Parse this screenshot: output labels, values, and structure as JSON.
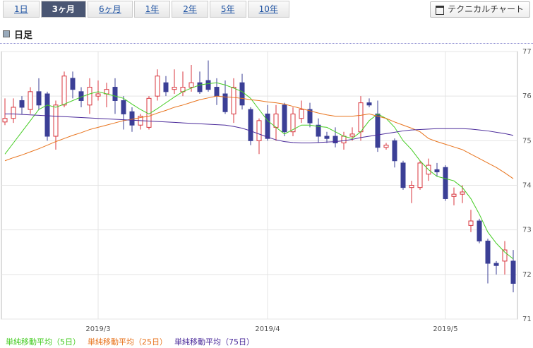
{
  "tabs": {
    "items": [
      "1日",
      "3ヶ月",
      "6ヶ月",
      "1年",
      "2年",
      "5年",
      "10年"
    ],
    "selected": 1
  },
  "button": "テクニカルチャート",
  "header": "日足",
  "chart_data": {
    "type": "candlestick",
    "categories": [
      null,
      null,
      null,
      null,
      null,
      null,
      null,
      null,
      null,
      null,
      null,
      "2019/3",
      null,
      null,
      null,
      null,
      null,
      null,
      null,
      null,
      null,
      null,
      null,
      null,
      null,
      null,
      null,
      null,
      null,
      null,
      null,
      "2019/4",
      null,
      null,
      null,
      null,
      null,
      null,
      null,
      null,
      null,
      null,
      null,
      null,
      null,
      null,
      null,
      null,
      null,
      null,
      null,
      null,
      "2019/5",
      null,
      null,
      null,
      null,
      null,
      null,
      null,
      null
    ],
    "ohlc": {
      "open": [
        75.42,
        75.5,
        75.9,
        75.7,
        76.1,
        76.05,
        75.1,
        75.8,
        76.4,
        76.1,
        75.8,
        76.0,
        76.05,
        76.2,
        75.9,
        75.65,
        75.35,
        75.3,
        76.0,
        76.3,
        76.15,
        76.1,
        76.2,
        76.3,
        76.35,
        76.2,
        76.05,
        75.6,
        76.3,
        75.7,
        75.0,
        75.6,
        75.3,
        75.8,
        75.2,
        75.5,
        75.7,
        75.35,
        75.1,
        75.1,
        74.95,
        75.1,
        75.2,
        75.85,
        75.6,
        74.85,
        75.0,
        74.5,
        73.95,
        73.95,
        74.25,
        74.35,
        74.4,
        73.75,
        73.8,
        73.1,
        73.2,
        72.75,
        72.25,
        72.3,
        72.3
      ],
      "high": [
        75.95,
        75.95,
        76.0,
        76.2,
        76.4,
        76.1,
        75.9,
        76.55,
        76.55,
        76.2,
        76.4,
        76.35,
        76.3,
        76.4,
        76.0,
        75.75,
        75.6,
        76.0,
        76.6,
        76.45,
        76.6,
        76.55,
        76.7,
        76.55,
        76.8,
        76.4,
        76.35,
        76.4,
        76.5,
        75.75,
        75.5,
        75.8,
        75.8,
        75.85,
        75.75,
        75.9,
        75.85,
        75.5,
        75.2,
        75.3,
        75.2,
        75.3,
        76.0,
        75.95,
        75.9,
        74.95,
        75.05,
        74.55,
        74.1,
        74.55,
        74.6,
        74.5,
        74.45,
        73.95,
        74.0,
        73.45,
        73.25,
        72.8,
        72.3,
        72.75,
        72.55
      ],
      "low": [
        75.35,
        75.4,
        75.6,
        75.6,
        75.7,
        75.0,
        74.8,
        75.75,
        75.95,
        75.75,
        75.6,
        75.9,
        75.75,
        75.6,
        75.25,
        75.2,
        75.25,
        75.25,
        75.9,
        76.0,
        76.05,
        76.0,
        76.1,
        76.05,
        76.1,
        75.8,
        75.6,
        75.4,
        75.7,
        74.9,
        74.7,
        75.0,
        75.0,
        75.1,
        75.1,
        75.4,
        75.3,
        74.95,
        74.95,
        74.85,
        74.8,
        75.0,
        75.0,
        75.75,
        74.75,
        74.8,
        74.4,
        73.9,
        73.6,
        73.9,
        74.1,
        74.2,
        73.65,
        73.55,
        73.6,
        72.95,
        72.7,
        71.8,
        72.0,
        72.0,
        71.6
      ],
      "close": [
        75.5,
        75.75,
        75.75,
        76.1,
        75.8,
        75.1,
        75.8,
        76.45,
        76.15,
        75.9,
        76.2,
        76.05,
        76.15,
        75.9,
        75.6,
        75.35,
        75.55,
        75.95,
        76.45,
        76.1,
        76.2,
        76.2,
        76.3,
        76.1,
        76.15,
        76.0,
        75.65,
        76.2,
        75.8,
        75.0,
        75.45,
        75.05,
        75.6,
        75.2,
        75.6,
        75.7,
        75.4,
        75.1,
        75.05,
        74.95,
        75.1,
        75.15,
        75.85,
        75.8,
        74.85,
        74.9,
        74.55,
        73.95,
        74.0,
        74.5,
        74.45,
        74.3,
        73.7,
        73.8,
        73.85,
        73.2,
        72.75,
        72.25,
        72.2,
        72.55,
        71.8
      ]
    },
    "up_color": "#d8343c",
    "down_color": "#3b3f96",
    "series": [
      {
        "name": "単純移動平均（5日）",
        "color": "#44cc22",
        "values": [
          74.7,
          74.95,
          75.2,
          75.45,
          75.7,
          75.8,
          75.75,
          75.82,
          75.9,
          75.98,
          76.05,
          76.1,
          76.05,
          76.0,
          75.95,
          75.82,
          75.7,
          75.6,
          75.72,
          75.85,
          75.98,
          76.1,
          76.18,
          76.25,
          76.28,
          76.3,
          76.25,
          76.18,
          76.1,
          75.95,
          75.7,
          75.45,
          75.3,
          75.15,
          75.25,
          75.35,
          75.35,
          75.32,
          75.3,
          75.2,
          75.1,
          75.05,
          75.2,
          75.45,
          75.6,
          75.5,
          75.3,
          75.0,
          74.8,
          74.55,
          74.35,
          74.2,
          74.15,
          74.1,
          73.95,
          73.7,
          73.35,
          72.95,
          72.7,
          72.5,
          72.35
        ]
      },
      {
        "name": "単純移動平均（25日）",
        "color": "#e8731c",
        "values": [
          74.55,
          74.62,
          74.68,
          74.75,
          74.82,
          74.9,
          74.98,
          75.05,
          75.12,
          75.18,
          75.25,
          75.3,
          75.35,
          75.4,
          75.45,
          75.48,
          75.52,
          75.55,
          75.62,
          75.68,
          75.75,
          75.8,
          75.86,
          75.92,
          75.96,
          76.0,
          75.98,
          75.97,
          75.95,
          75.92,
          75.9,
          75.87,
          75.85,
          75.82,
          75.77,
          75.72,
          75.67,
          75.62,
          75.58,
          75.55,
          75.55,
          75.55,
          75.57,
          75.6,
          75.55,
          75.5,
          75.42,
          75.35,
          75.28,
          75.2,
          75.05,
          74.98,
          74.92,
          74.86,
          74.8,
          74.7,
          74.6,
          74.5,
          74.4,
          74.28,
          74.15
        ]
      },
      {
        "name": "単純移動平均（75日）",
        "color": "#4a2a9a",
        "values": [
          75.6,
          75.6,
          75.59,
          75.58,
          75.57,
          75.56,
          75.55,
          75.54,
          75.53,
          75.52,
          75.51,
          75.5,
          75.49,
          75.48,
          75.47,
          75.46,
          75.45,
          75.44,
          75.43,
          75.42,
          75.41,
          75.4,
          75.39,
          75.38,
          75.37,
          75.36,
          75.35,
          75.32,
          75.28,
          75.22,
          75.15,
          75.08,
          75.02,
          74.98,
          74.96,
          74.95,
          74.95,
          74.96,
          74.97,
          74.98,
          75.0,
          75.03,
          75.07,
          75.1,
          75.13,
          75.16,
          75.19,
          75.22,
          75.24,
          75.25,
          75.26,
          75.27,
          75.27,
          75.27,
          75.27,
          75.26,
          75.24,
          75.22,
          75.19,
          75.16,
          75.12
        ]
      }
    ],
    "ylim": [
      71,
      77
    ],
    "yticks": [
      71,
      72,
      73,
      74,
      75,
      76,
      77
    ],
    "grid": true
  }
}
